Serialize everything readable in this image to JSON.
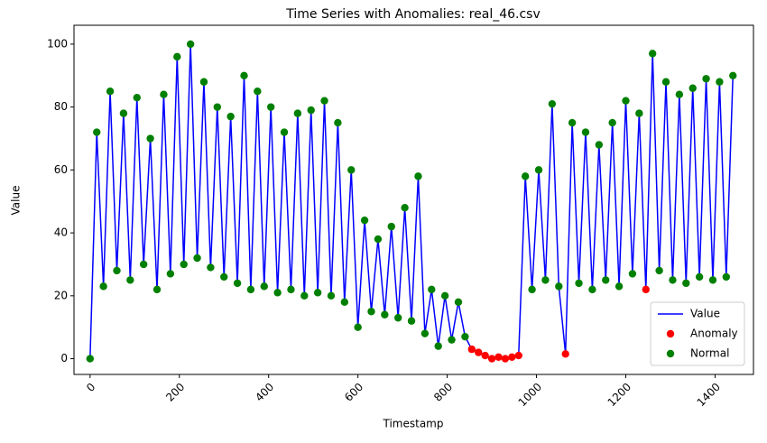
{
  "chart_data": {
    "type": "line",
    "title": "Time Series with Anomalies: real_46.csv",
    "x_label": "Timestamp",
    "y_label": "Value",
    "xlim": [
      -36,
      1486
    ],
    "ylim": [
      -5,
      106
    ],
    "xticks": [
      0,
      200,
      400,
      600,
      800,
      1000,
      1200,
      1400
    ],
    "yticks": [
      0,
      20,
      40,
      60,
      80,
      100
    ],
    "grid": false,
    "legend": "lower right",
    "series": [
      {
        "name": "Value",
        "kind": "line",
        "color": "#0000ff",
        "x": [
          0,
          15,
          30,
          45,
          60,
          75,
          90,
          105,
          120,
          135,
          150,
          165,
          180,
          195,
          210,
          225,
          240,
          255,
          270,
          285,
          300,
          315,
          330,
          345,
          360,
          375,
          390,
          405,
          420,
          435,
          450,
          465,
          480,
          495,
          510,
          525,
          540,
          555,
          570,
          585,
          600,
          615,
          630,
          645,
          660,
          675,
          690,
          705,
          720,
          735,
          750,
          765,
          780,
          795,
          810,
          825,
          840,
          855,
          870,
          885,
          900,
          915,
          930,
          945,
          960,
          975,
          990,
          1005,
          1020,
          1035,
          1050,
          1065,
          1080,
          1095,
          1110,
          1125,
          1140,
          1155,
          1170,
          1185,
          1200,
          1215,
          1230,
          1245,
          1260,
          1275,
          1290,
          1305,
          1320,
          1335,
          1350,
          1365,
          1380,
          1395,
          1410,
          1425,
          1440
        ],
        "values": [
          0,
          72,
          23,
          85,
          28,
          78,
          25,
          83,
          30,
          70,
          22,
          84,
          27,
          96,
          30,
          100,
          32,
          88,
          29,
          80,
          26,
          77,
          24,
          90,
          22,
          85,
          23,
          80,
          21,
          72,
          22,
          78,
          20,
          79,
          21,
          82,
          20,
          75,
          18,
          60,
          10,
          44,
          15,
          38,
          14,
          42,
          13,
          48,
          12,
          58,
          8,
          22,
          4,
          20,
          6,
          18,
          7,
          3,
          2,
          1,
          0,
          0.5,
          0,
          0.5,
          1,
          58,
          22,
          60,
          25,
          81,
          23,
          1.5,
          75,
          24,
          72,
          22,
          68,
          25,
          75,
          23,
          82,
          27,
          78,
          22,
          97,
          28,
          88,
          25,
          84,
          24,
          86,
          26,
          89,
          25,
          88,
          26,
          90
        ]
      },
      {
        "name": "Anomaly",
        "kind": "scatter",
        "color": "#ff0000",
        "x": [
          855,
          870,
          885,
          900,
          915,
          930,
          945,
          960,
          1065,
          1245
        ],
        "values": [
          3,
          2,
          1,
          0,
          0.5,
          0,
          0.5,
          1,
          1.5,
          22
        ]
      },
      {
        "name": "Normal",
        "kind": "scatter",
        "color": "#008000",
        "x": [
          0,
          15,
          30,
          45,
          60,
          75,
          90,
          105,
          120,
          135,
          150,
          165,
          180,
          195,
          210,
          225,
          240,
          255,
          270,
          285,
          300,
          315,
          330,
          345,
          360,
          375,
          390,
          405,
          420,
          435,
          450,
          465,
          480,
          495,
          510,
          525,
          540,
          555,
          570,
          585,
          600,
          615,
          630,
          645,
          660,
          675,
          690,
          705,
          720,
          735,
          750,
          765,
          780,
          795,
          810,
          825,
          840,
          975,
          990,
          1005,
          1020,
          1035,
          1050,
          1080,
          1095,
          1110,
          1125,
          1140,
          1155,
          1170,
          1185,
          1200,
          1215,
          1230,
          1260,
          1275,
          1290,
          1305,
          1320,
          1335,
          1350,
          1365,
          1380,
          1395,
          1410,
          1425,
          1440
        ],
        "values": [
          0,
          72,
          23,
          85,
          28,
          78,
          25,
          83,
          30,
          70,
          22,
          84,
          27,
          96,
          30,
          100,
          32,
          88,
          29,
          80,
          26,
          77,
          24,
          90,
          22,
          85,
          23,
          80,
          21,
          72,
          22,
          78,
          20,
          79,
          21,
          82,
          20,
          75,
          18,
          60,
          10,
          44,
          15,
          38,
          14,
          42,
          13,
          48,
          12,
          58,
          8,
          22,
          4,
          20,
          6,
          18,
          7,
          58,
          22,
          60,
          25,
          81,
          23,
          75,
          24,
          72,
          22,
          68,
          25,
          75,
          23,
          82,
          27,
          78,
          97,
          28,
          88,
          25,
          84,
          24,
          86,
          26,
          89,
          25,
          88,
          26,
          90
        ]
      }
    ]
  }
}
